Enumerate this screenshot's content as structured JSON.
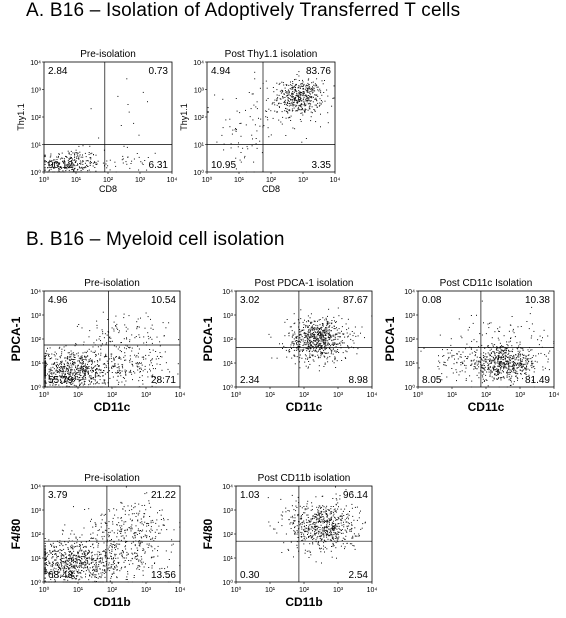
{
  "section_a_title": "A. B16 – Isolation of Adoptively Transferred T cells",
  "section_b_title": "B. B16 – Myeloid cell isolation",
  "chart_data": [
    {
      "type": "scatter",
      "title": "Pre-isolation",
      "xlabel": "CD8",
      "ylabel": "Thy1.1",
      "xlim": [
        0,
        4
      ],
      "ylim": [
        0,
        4
      ],
      "log_scale": true,
      "gate": {
        "x": 1.9,
        "y": 1.0
      },
      "quadrants": {
        "upper_left": "2.84",
        "upper_right": "0.73",
        "lower_left": "90.12",
        "lower_right": "6.31"
      },
      "tick_labels": [
        "10⁰",
        "10¹",
        "10²",
        "10³",
        "10⁴"
      ],
      "clusters": [
        {
          "cx": 0.8,
          "cy": 0.3,
          "sx": 0.45,
          "sy": 0.28,
          "n": 260
        },
        {
          "cx": 2.6,
          "cy": 0.4,
          "sx": 0.55,
          "sy": 0.3,
          "n": 40
        },
        {
          "cx": 2.4,
          "cy": 2.2,
          "sx": 0.7,
          "sy": 0.6,
          "n": 12
        }
      ]
    },
    {
      "type": "scatter",
      "title": "Post Thy1.1 isolation",
      "xlabel": "CD8",
      "ylabel": "Thy1.1",
      "xlim": [
        0,
        4
      ],
      "ylim": [
        0,
        4
      ],
      "log_scale": true,
      "gate": {
        "x": 1.75,
        "y": 1.0
      },
      "quadrants": {
        "upper_left": "4.94",
        "upper_right": "83.76",
        "lower_left": "10.95",
        "lower_right": "3.35"
      },
      "tick_labels": [
        "10⁰",
        "10¹",
        "10²",
        "10³",
        "10⁴"
      ],
      "clusters": [
        {
          "cx": 2.9,
          "cy": 2.75,
          "sx": 0.35,
          "sy": 0.3,
          "n": 420
        },
        {
          "cx": 2.2,
          "cy": 2.2,
          "sx": 0.7,
          "sy": 0.6,
          "n": 90
        },
        {
          "cx": 0.9,
          "cy": 1.4,
          "sx": 0.6,
          "sy": 0.8,
          "n": 50
        }
      ]
    },
    {
      "type": "scatter",
      "title": "Pre-isolation",
      "xlabel": "CD11c",
      "ylabel": "PDCA-1",
      "xlim": [
        0,
        4
      ],
      "ylim": [
        0,
        4
      ],
      "log_scale": true,
      "gate": {
        "x": 1.9,
        "y": 1.75
      },
      "quadrants": {
        "upper_left": "4.96",
        "upper_right": "10.54",
        "lower_left": "55.79",
        "lower_right": "28.71"
      },
      "tick_labels": [
        "10⁰",
        "10¹",
        "10²",
        "10³",
        "10⁴"
      ],
      "clusters": [
        {
          "cx": 0.8,
          "cy": 0.7,
          "sx": 0.6,
          "sy": 0.45,
          "n": 700
        },
        {
          "cx": 2.4,
          "cy": 1.0,
          "sx": 0.6,
          "sy": 0.5,
          "n": 220
        },
        {
          "cx": 2.4,
          "cy": 2.3,
          "sx": 0.7,
          "sy": 0.5,
          "n": 90
        }
      ]
    },
    {
      "type": "scatter",
      "title": "Post PDCA-1 isolation",
      "xlabel": "CD11c",
      "ylabel": "PDCA-1",
      "xlim": [
        0,
        4
      ],
      "ylim": [
        0,
        4
      ],
      "log_scale": true,
      "gate": {
        "x": 1.85,
        "y": 1.65
      },
      "quadrants": {
        "upper_left": "3.02",
        "upper_right": "87.67",
        "lower_left": "2.34",
        "lower_right": "8.98"
      },
      "tick_labels": [
        "10⁰",
        "10¹",
        "10²",
        "10³",
        "10⁴"
      ],
      "clusters": [
        {
          "cx": 2.4,
          "cy": 2.0,
          "sx": 0.45,
          "sy": 0.45,
          "n": 700
        }
      ]
    },
    {
      "type": "scatter",
      "title": "Post CD11c Isolation",
      "xlabel": "CD11c",
      "ylabel": "PDCA-1",
      "xlim": [
        0,
        4
      ],
      "ylim": [
        0,
        4
      ],
      "log_scale": true,
      "gate": {
        "x": 1.85,
        "y": 1.65
      },
      "quadrants": {
        "upper_left": "0.08",
        "upper_right": "10.38",
        "lower_left": "8.05",
        "lower_right": "81.49"
      },
      "tick_labels": [
        "10⁰",
        "10¹",
        "10²",
        "10³",
        "10⁴"
      ],
      "clusters": [
        {
          "cx": 2.5,
          "cy": 1.0,
          "sx": 0.55,
          "sy": 0.35,
          "n": 620
        },
        {
          "cx": 2.5,
          "cy": 2.1,
          "sx": 0.7,
          "sy": 0.5,
          "n": 80
        },
        {
          "cx": 1.1,
          "cy": 1.1,
          "sx": 0.45,
          "sy": 0.35,
          "n": 60
        }
      ]
    },
    {
      "type": "scatter",
      "title": "Pre-isolation",
      "xlabel": "CD11b",
      "ylabel": "F4/80",
      "xlim": [
        0,
        4
      ],
      "ylim": [
        0,
        4
      ],
      "log_scale": true,
      "gate": {
        "x": 1.85,
        "y": 1.7
      },
      "quadrants": {
        "upper_left": "3.79",
        "upper_right": "21.22",
        "lower_left": "68.43",
        "lower_right": "13.56"
      },
      "tick_labels": [
        "10⁰",
        "10¹",
        "10²",
        "10³",
        "10⁴"
      ],
      "clusters": [
        {
          "cx": 0.9,
          "cy": 0.8,
          "sx": 0.6,
          "sy": 0.5,
          "n": 720
        },
        {
          "cx": 2.5,
          "cy": 2.2,
          "sx": 0.65,
          "sy": 0.6,
          "n": 280
        },
        {
          "cx": 2.5,
          "cy": 1.0,
          "sx": 0.6,
          "sy": 0.4,
          "n": 140
        }
      ]
    },
    {
      "type": "scatter",
      "title": "Post CD11b isolation",
      "xlabel": "CD11b",
      "ylabel": "F4/80",
      "xlim": [
        0,
        4
      ],
      "ylim": [
        0,
        4
      ],
      "log_scale": true,
      "gate": {
        "x": 1.85,
        "y": 1.7
      },
      "quadrants": {
        "upper_left": "1.03",
        "upper_right": "96.14",
        "lower_left": "0.30",
        "lower_right": "2.54"
      },
      "tick_labels": [
        "10⁰",
        "10¹",
        "10²",
        "10³",
        "10⁴"
      ],
      "clusters": [
        {
          "cx": 2.55,
          "cy": 2.35,
          "sx": 0.5,
          "sy": 0.55,
          "n": 650
        }
      ]
    }
  ]
}
